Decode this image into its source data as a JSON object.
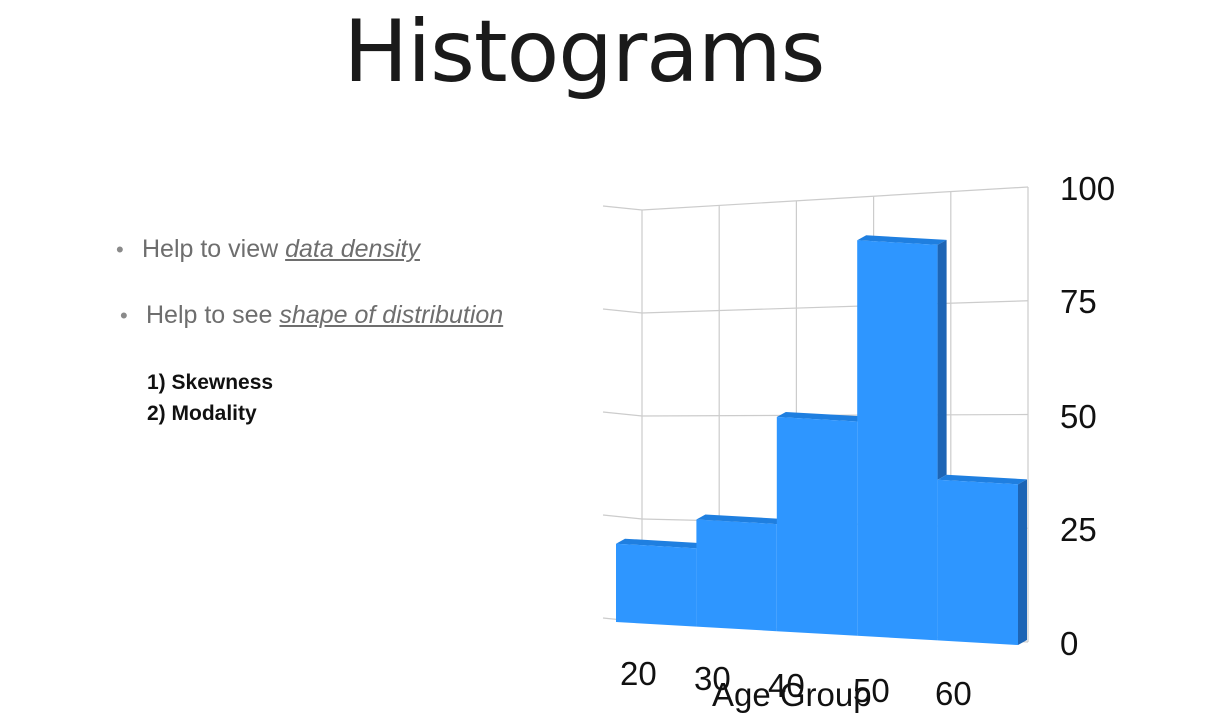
{
  "slide": {
    "title": "Histograms",
    "bullets": [
      {
        "prefix": "Help to view ",
        "emphasis": "data density"
      },
      {
        "prefix": "Help to see ",
        "emphasis": "shape of distribution"
      }
    ],
    "sub_items": [
      "1) Skewness",
      "2) Modality"
    ]
  },
  "chart_data": {
    "type": "bar",
    "style": "3d-histogram",
    "categories": [
      "20",
      "30",
      "40",
      "50",
      "60"
    ],
    "values": [
      19,
      26,
      52,
      96,
      39
    ],
    "xlabel": "Age Group",
    "ylabel": "",
    "ylim": [
      0,
      100
    ],
    "y_ticks": [
      "0",
      "25",
      "50",
      "75",
      "100"
    ],
    "grid": true,
    "colors": {
      "front": "#2e96ff",
      "top": "#1f7fe0",
      "side": "#1d65b5",
      "grid": "#cccccc"
    }
  }
}
